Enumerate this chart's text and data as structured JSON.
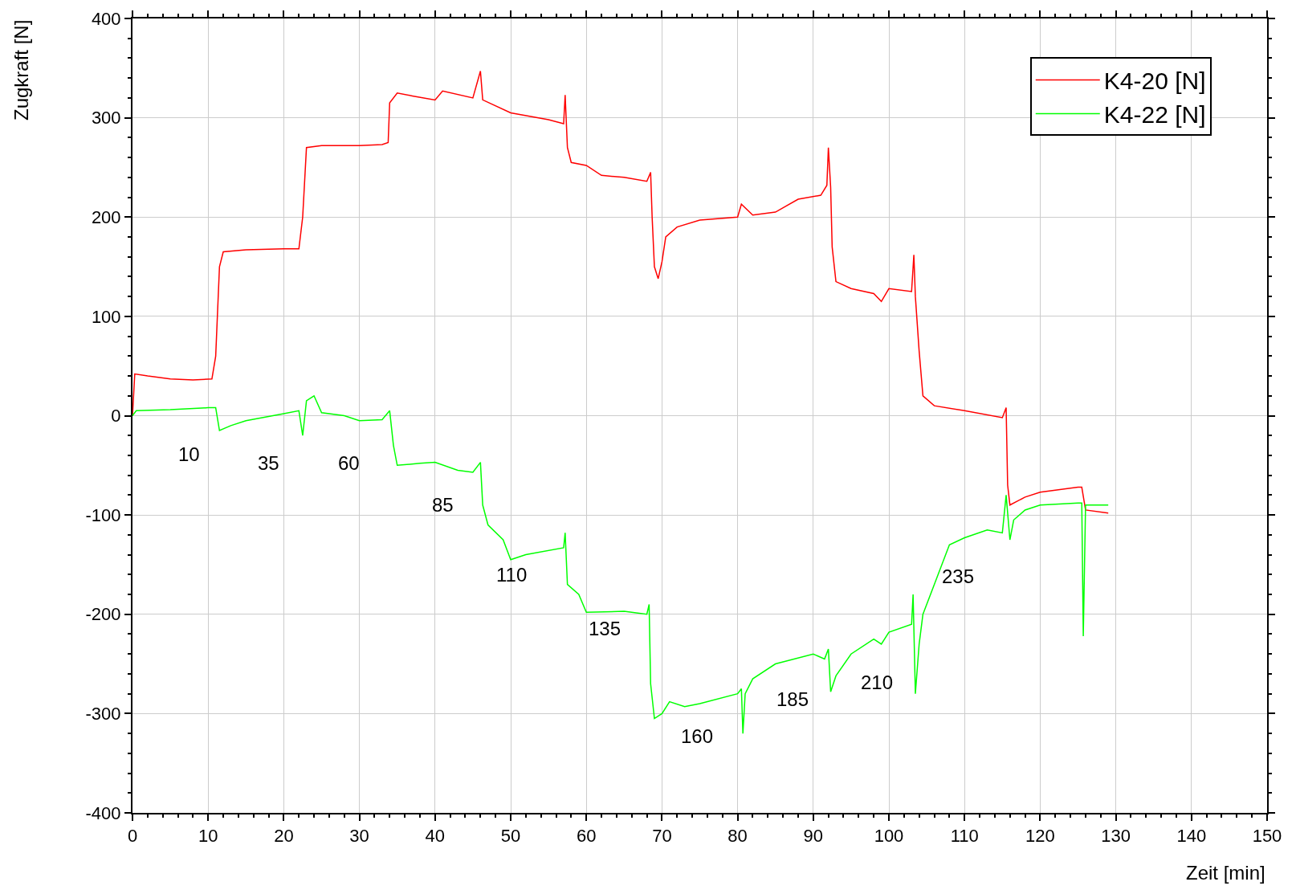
{
  "chart_data": {
    "type": "line",
    "xlabel": "Zeit [min]",
    "ylabel": "Zugkraft [N]",
    "xlim": [
      0,
      150
    ],
    "xticks": [
      0,
      10,
      20,
      30,
      40,
      50,
      60,
      70,
      80,
      90,
      100,
      110,
      120,
      130,
      140,
      150
    ],
    "ylim": [
      -400,
      400
    ],
    "yticks": [
      -400,
      -300,
      -200,
      -100,
      0,
      100,
      200,
      300,
      400
    ],
    "grid": true,
    "legend": "top right",
    "line_style": "solid",
    "marker": "none",
    "series": [
      {
        "name": "K4-20 [N]",
        "color": "#ff0000",
        "x": [
          0,
          0.3,
          2,
          5,
          8,
          10.5,
          11,
          11.5,
          12,
          15,
          20,
          22,
          22.5,
          23,
          25,
          30,
          33,
          33.8,
          34,
          35,
          37,
          40,
          41,
          45,
          46,
          46.3,
          50,
          55,
          57,
          57.2,
          57.5,
          58,
          60,
          62,
          65,
          68,
          68.5,
          68.7,
          69,
          69.5,
          70,
          70.5,
          72,
          75,
          80,
          80.5,
          82,
          85,
          88,
          91,
          91.8,
          92,
          92.3,
          92.5,
          93,
          95,
          98,
          99,
          100,
          103,
          103.3,
          103.5,
          104,
          104.5,
          106,
          110,
          115,
          115.5,
          115.7,
          116,
          118,
          120,
          125,
          125.5,
          126,
          129
        ],
        "values": [
          0,
          42,
          40,
          37,
          36,
          37,
          60,
          150,
          165,
          167,
          168,
          168,
          200,
          270,
          272,
          272,
          273,
          275,
          315,
          325,
          322,
          318,
          327,
          320,
          347,
          318,
          305,
          298,
          294,
          323,
          270,
          255,
          252,
          242,
          240,
          236,
          245,
          200,
          150,
          138,
          155,
          180,
          190,
          197,
          200,
          213,
          202,
          205,
          218,
          222,
          232,
          270,
          230,
          170,
          135,
          128,
          123,
          115,
          128,
          125,
          162,
          120,
          65,
          20,
          10,
          5,
          -2,
          8,
          -70,
          -90,
          -82,
          -77,
          -72,
          -72,
          -95,
          -98
        ]
      },
      {
        "name": "K4-22 [N]",
        "color": "#00ff00",
        "x": [
          0,
          0.5,
          5,
          10,
          11,
          11.5,
          13,
          15,
          20,
          22,
          22.5,
          23,
          24,
          25,
          28,
          30,
          33,
          34,
          34.5,
          35,
          38,
          40,
          43,
          45,
          46,
          46.3,
          47,
          49,
          50,
          52,
          57,
          57.2,
          57.5,
          59,
          60,
          65,
          68,
          68.3,
          68.5,
          69,
          70,
          71,
          73,
          75,
          80,
          80.5,
          80.7,
          81,
          82,
          85,
          90,
          91.5,
          92,
          92.3,
          93,
          95,
          98,
          99,
          100,
          103,
          103.2,
          103.5,
          104,
          104.5,
          106,
          108,
          110,
          113,
          115,
          115.5,
          116,
          116.5,
          118,
          120,
          125,
          125.5,
          125.7,
          126,
          129
        ],
        "values": [
          0,
          5,
          6,
          8,
          8,
          -15,
          -10,
          -5,
          2,
          5,
          -20,
          15,
          20,
          3,
          0,
          -5,
          -4,
          5,
          -30,
          -50,
          -48,
          -47,
          -55,
          -57,
          -47,
          -90,
          -110,
          -125,
          -145,
          -140,
          -133,
          -118,
          -170,
          -180,
          -198,
          -197,
          -200,
          -190,
          -270,
          -305,
          -300,
          -288,
          -293,
          -290,
          -280,
          -275,
          -320,
          -280,
          -265,
          -250,
          -240,
          -245,
          -235,
          -278,
          -262,
          -240,
          -225,
          -230,
          -218,
          -210,
          -180,
          -280,
          -230,
          -200,
          -170,
          -130,
          -123,
          -115,
          -118,
          -80,
          -125,
          -105,
          -95,
          -90,
          -88,
          -88,
          -222,
          -90,
          -90
        ]
      }
    ],
    "annotations": [
      "10",
      "35",
      "60",
      "85",
      "110",
      "135",
      "160",
      "185",
      "210",
      "235"
    ]
  }
}
